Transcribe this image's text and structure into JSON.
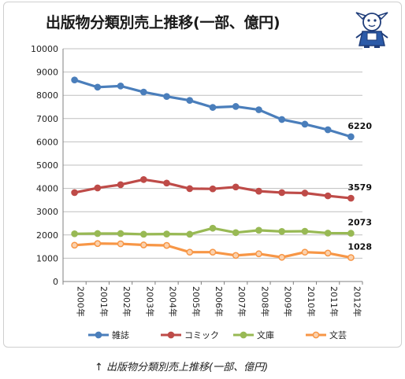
{
  "caption": "↑ 出版物分類別売上推移(一部、億円)",
  "chart_data": {
    "type": "line",
    "title": "出版物分類別売上推移(一部、億円)",
    "categories": [
      "2000年",
      "2001年",
      "2002年",
      "2003年",
      "2004年",
      "2005年",
      "2006年",
      "2007年",
      "2008年",
      "2009年",
      "2010年",
      "2011年",
      "2012年"
    ],
    "ylim": [
      0,
      10000
    ],
    "yticks": [
      0,
      1000,
      2000,
      3000,
      4000,
      5000,
      6000,
      7000,
      8000,
      9000,
      10000
    ],
    "grid": true,
    "legend_position": "bottom",
    "series": [
      {
        "name": "雑誌",
        "color": "#4a7ebb",
        "values": [
          8660,
          8350,
          8400,
          8140,
          7950,
          7780,
          7480,
          7520,
          7380,
          6960,
          6760,
          6520,
          6220
        ],
        "end_label": "6220"
      },
      {
        "name": "コミック",
        "color": "#be4b48",
        "values": [
          3820,
          4020,
          4160,
          4380,
          4230,
          3990,
          3980,
          4060,
          3880,
          3820,
          3800,
          3680,
          3579
        ],
        "end_label": "3579"
      },
      {
        "name": "文庫",
        "color": "#98b954",
        "values": [
          2050,
          2060,
          2060,
          2030,
          2040,
          2030,
          2290,
          2100,
          2200,
          2150,
          2160,
          2080,
          2073
        ],
        "end_label": "2073"
      },
      {
        "name": "文芸",
        "color": "#f79646",
        "values": [
          1560,
          1630,
          1620,
          1570,
          1550,
          1260,
          1260,
          1120,
          1190,
          1040,
          1260,
          1220,
          1028
        ],
        "end_label": "1028"
      }
    ]
  }
}
